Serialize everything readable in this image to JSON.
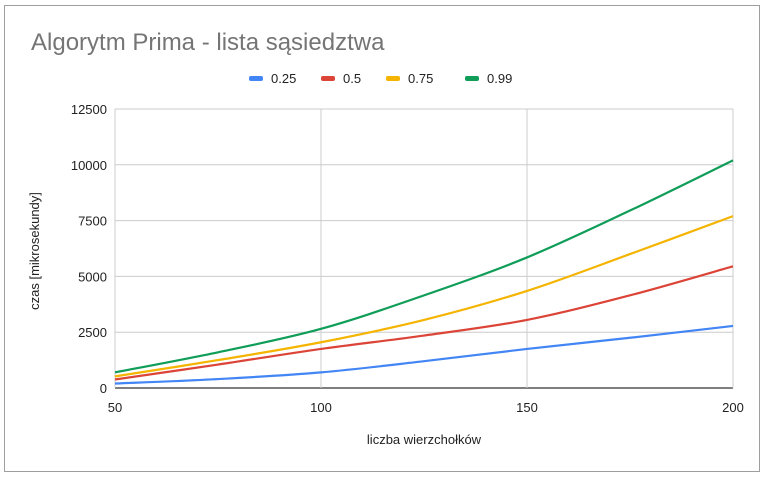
{
  "chart_data": {
    "type": "line",
    "title": "Algorytm Prima - lista sąsiedztwa",
    "xlabel": "liczba wierzchołków",
    "ylabel": "czas [mikrosekundy]",
    "xlim": [
      50,
      200
    ],
    "ylim": [
      0,
      12500
    ],
    "x_ticks": [
      "50",
      "100",
      "150",
      "200"
    ],
    "y_ticks": [
      "0",
      "2500",
      "5000",
      "7500",
      "10000",
      "12500"
    ],
    "legend_position": "top",
    "grid": true,
    "x": [
      50,
      75,
      100,
      125,
      150,
      175,
      200
    ],
    "series": [
      {
        "name": "0.25",
        "color": "#4285f4",
        "values": [
          200,
          400,
          700,
          1200,
          1750,
          2250,
          2780
        ]
      },
      {
        "name": "0.5",
        "color": "#db4437",
        "values": [
          380,
          1050,
          1750,
          2350,
          3050,
          4150,
          5450
        ]
      },
      {
        "name": "0.75",
        "color": "#f4b400",
        "values": [
          520,
          1250,
          2050,
          3050,
          4350,
          6000,
          7700
        ]
      },
      {
        "name": "0.99",
        "color": "#0f9d58",
        "values": [
          700,
          1600,
          2650,
          4150,
          5850,
          7950,
          10200
        ]
      }
    ]
  }
}
